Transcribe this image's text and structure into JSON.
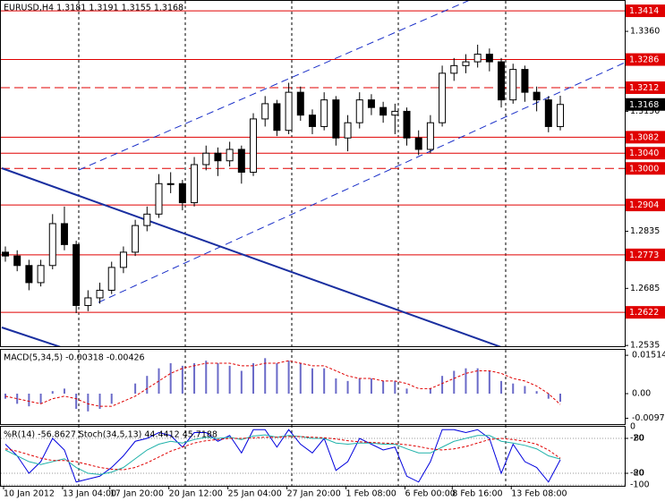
{
  "chart_data": [
    {
      "type": "candlestick",
      "title": "EURUSD,H4  1.3181 1.3191 1.3155 1.3168",
      "categories": [
        "10 Jan 2012",
        null,
        null,
        null,
        null,
        "13 Jan 04:00",
        null,
        null,
        null,
        "17 Jan 20:00",
        null,
        null,
        null,
        null,
        "20 Jan 12:00",
        null,
        null,
        null,
        null,
        "25 Jan 04:00",
        null,
        null,
        null,
        null,
        "27 Jan 20:00",
        null,
        null,
        null,
        null,
        "1 Feb 08:00",
        null,
        null,
        null,
        null,
        "6 Feb 00:00",
        null,
        null,
        null,
        "8 Feb 16:00",
        null,
        null,
        null,
        null,
        "13 Feb 08:00",
        null,
        null,
        null,
        null
      ],
      "open": [
        1.278,
        1.277,
        1.2745,
        1.27,
        1.2745,
        1.2855,
        1.28,
        1.264,
        1.266,
        1.268,
        1.274,
        1.278,
        1.285,
        1.288,
        1.296,
        1.296,
        1.291,
        1.301,
        1.304,
        1.302,
        1.305,
        1.299,
        1.313,
        1.317,
        1.31,
        1.32,
        1.314,
        1.311,
        1.318,
        1.308,
        1.312,
        1.318,
        1.316,
        1.314,
        1.315,
        1.308,
        1.305,
        1.312,
        1.325,
        1.327,
        1.328,
        1.33,
        1.328,
        1.318,
        1.326,
        1.32,
        1.318,
        1.311
      ],
      "high": [
        1.2795,
        1.2785,
        1.276,
        1.276,
        1.288,
        1.29,
        1.281,
        1.268,
        1.27,
        1.2755,
        1.2795,
        1.2865,
        1.29,
        1.2985,
        1.299,
        1.297,
        1.303,
        1.306,
        1.3055,
        1.307,
        1.306,
        1.3145,
        1.319,
        1.318,
        1.3225,
        1.3215,
        1.3155,
        1.32,
        1.319,
        1.314,
        1.32,
        1.3195,
        1.3175,
        1.317,
        1.316,
        1.31,
        1.314,
        1.327,
        1.329,
        1.33,
        1.3325,
        1.3315,
        1.329,
        1.3275,
        1.327,
        1.3215,
        1.319,
        1.3191
      ],
      "low": [
        1.2755,
        1.273,
        1.268,
        1.269,
        1.2735,
        1.2785,
        1.262,
        1.2625,
        1.2645,
        1.267,
        1.2725,
        1.277,
        1.2835,
        1.287,
        1.2935,
        1.289,
        1.29,
        1.2995,
        1.298,
        1.3005,
        1.296,
        1.298,
        1.311,
        1.3085,
        1.309,
        1.3125,
        1.309,
        1.31,
        1.306,
        1.3045,
        1.3105,
        1.314,
        1.312,
        1.309,
        1.306,
        1.3035,
        1.304,
        1.311,
        1.323,
        1.325,
        1.3265,
        1.3255,
        1.316,
        1.317,
        1.3175,
        1.315,
        1.3095,
        1.31
      ],
      "close": [
        1.277,
        1.2745,
        1.27,
        1.2745,
        1.2855,
        1.28,
        1.264,
        1.266,
        1.268,
        1.274,
        1.278,
        1.285,
        1.288,
        1.296,
        1.296,
        1.291,
        1.301,
        1.304,
        1.302,
        1.305,
        1.299,
        1.313,
        1.317,
        1.31,
        1.32,
        1.314,
        1.311,
        1.318,
        1.308,
        1.312,
        1.318,
        1.316,
        1.314,
        1.315,
        1.308,
        1.305,
        1.312,
        1.325,
        1.327,
        1.328,
        1.33,
        1.328,
        1.318,
        1.326,
        1.32,
        1.318,
        1.311,
        1.3168
      ],
      "up_color": "#ffffff",
      "down_color": "#000000",
      "ylim": [
        1.2533,
        1.344
      ],
      "yticks": [
        {
          "value": 1.336,
          "label": "1.3360"
        },
        {
          "value": 1.315,
          "label": "1.3150"
        },
        1.2835,
        1.2685,
        1.2535
      ],
      "levels": [
        {
          "value": 1.3414,
          "style": "solid"
        },
        {
          "value": 1.3286,
          "style": "solid"
        },
        {
          "value": 1.3212,
          "style": "dashed"
        },
        {
          "value": 1.3082,
          "style": "solid"
        },
        {
          "value": {
            "value": 1.304,
            "label": "1.3040"
          },
          "style": "solid"
        },
        {
          "value": {
            "value": 1.3,
            "label": "1.3000"
          },
          "style": "dashed"
        },
        {
          "value": 1.2904,
          "style": "solid"
        },
        {
          "value": 1.2773,
          "style": "solid"
        },
        {
          "value": 1.2622,
          "style": "solid"
        }
      ],
      "level_color": "#e00000",
      "last_price": 1.3168
    },
    {
      "type": "macd",
      "title": "MACD(5,34,5) -0.00318 -0.00426",
      "histogram": {
        "color": "#6a6ac8",
        "values": [
          -0.002,
          -0.004,
          -0.005,
          -0.004,
          0.001,
          0.002,
          -0.006,
          -0.007,
          -0.006,
          -0.004,
          0.0,
          0.004,
          0.007,
          0.01,
          0.012,
          0.011,
          0.012,
          0.013,
          0.012,
          0.011,
          0.009,
          0.012,
          0.014,
          0.012,
          0.013,
          0.012,
          0.01,
          0.01,
          0.006,
          0.005,
          0.006,
          0.006,
          0.005,
          0.005,
          0.002,
          0.0,
          0.002,
          0.007,
          0.009,
          0.01,
          0.01,
          0.009,
          0.005,
          0.004,
          0.003,
          0.001,
          -0.002,
          -0.00318
        ]
      },
      "signal": {
        "color": "#e00000",
        "values": [
          -0.001,
          -0.002,
          -0.003,
          -0.004,
          -0.002,
          -0.001,
          -0.002,
          -0.004,
          -0.005,
          -0.005,
          -0.003,
          -0.001,
          0.002,
          0.005,
          0.008,
          0.01,
          0.011,
          0.012,
          0.012,
          0.012,
          0.011,
          0.011,
          0.012,
          0.012,
          0.013,
          0.012,
          0.011,
          0.011,
          0.009,
          0.007,
          0.006,
          0.006,
          0.005,
          0.005,
          0.004,
          0.002,
          0.002,
          0.004,
          0.006,
          0.008,
          0.009,
          0.009,
          0.008,
          0.006,
          0.005,
          0.003,
          0.0,
          -0.00426
        ]
      },
      "ylim": [
        -0.012,
        0.0173
      ],
      "yticks": [
        0.01514,
        {
          "value": 0,
          "label": "0.00"
        },
        -0.0097
      ]
    },
    {
      "type": "oscillator",
      "title": "%R(14) -56.8627  Stoch(34,5,13) 44.4412 45.7188",
      "series": [
        {
          "color": "#0000dd",
          "dash": "none",
          "values": [
            -30,
            -50,
            -80,
            -60,
            -20,
            -40,
            -95,
            -90,
            -85,
            -70,
            -50,
            -25,
            -20,
            -10,
            -15,
            -35,
            -10,
            -10,
            -25,
            -15,
            -45,
            -5,
            -5,
            -35,
            -5,
            -30,
            -45,
            -20,
            -75,
            -60,
            -20,
            -30,
            -40,
            -35,
            -85,
            -95,
            -60,
            -5,
            -5,
            -10,
            -5,
            -20,
            -80,
            -30,
            -60,
            -70,
            -95,
            -56.8627
          ]
        },
        {
          "color": "#20b2aa",
          "dash": "none",
          "axis": "y2",
          "values": [
            60,
            50,
            40,
            35,
            40,
            45,
            30,
            20,
            18,
            22,
            30,
            45,
            60,
            70,
            75,
            72,
            78,
            82,
            80,
            82,
            78,
            84,
            86,
            82,
            85,
            83,
            80,
            80,
            72,
            70,
            72,
            72,
            70,
            70,
            62,
            55,
            55,
            65,
            75,
            80,
            85,
            85,
            75,
            72,
            68,
            62,
            50,
            44.4412
          ]
        },
        {
          "color": "#e00000",
          "dash": "3,2",
          "axis": "y2",
          "values": [
            62,
            58,
            52,
            46,
            42,
            42,
            40,
            35,
            30,
            27,
            26,
            30,
            38,
            48,
            58,
            65,
            72,
            76,
            78,
            80,
            80,
            81,
            82,
            82,
            83,
            83,
            82,
            81,
            79,
            76,
            74,
            73,
            72,
            71,
            69,
            66,
            62,
            60,
            62,
            66,
            72,
            78,
            80,
            78,
            75,
            70,
            60,
            45.7188
          ]
        }
      ],
      "ylim": [
        -101.5,
        0
      ],
      "yticks": [
        0,
        -20,
        -80,
        -100
      ],
      "y2lim": [
        -1.5,
        100
      ],
      "y2ticks": [
        80,
        20
      ]
    }
  ]
}
